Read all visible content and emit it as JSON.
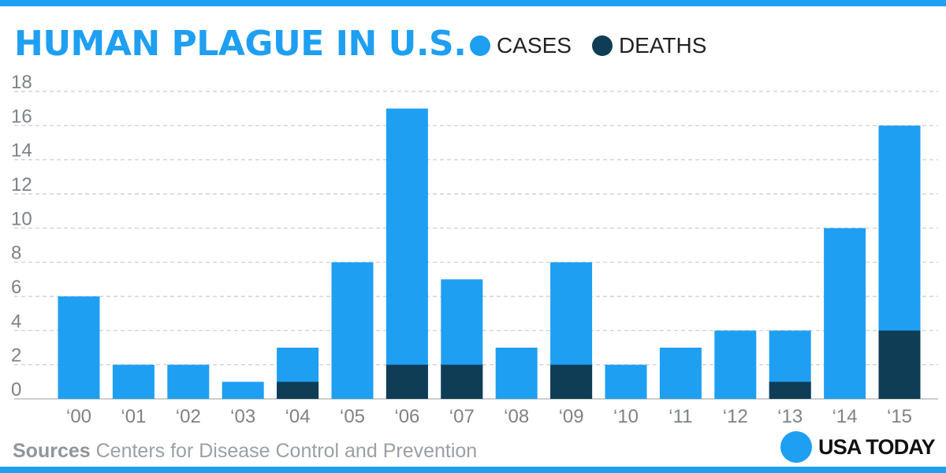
{
  "colors": {
    "cases": "#1e9ff2",
    "deaths": "#0f3d55",
    "accent": "#1e9ff2"
  },
  "header": {
    "title": "HUMAN PLAGUE IN U.S."
  },
  "legend": {
    "cases_label": "CASES",
    "deaths_label": "DEATHS"
  },
  "footer": {
    "source_label": "Sources",
    "source_text": "Centers for Disease Control and Prevention",
    "brand": "USA TODAY"
  },
  "chart_data": {
    "type": "bar",
    "title": "HUMAN PLAGUE IN U.S.",
    "xlabel": "",
    "ylabel": "",
    "ylim": [
      0,
      18
    ],
    "yticks": [
      0,
      2,
      4,
      6,
      8,
      10,
      12,
      14,
      16,
      18
    ],
    "grid": true,
    "legend_position": "top",
    "categories": [
      "‘00",
      "‘01",
      "‘02",
      "‘03",
      "‘04",
      "‘05",
      "‘06",
      "‘07",
      "‘08",
      "‘09",
      "‘10",
      "‘11",
      "‘12",
      "‘13",
      "‘14",
      "‘15"
    ],
    "series": [
      {
        "name": "CASES",
        "values": [
          6,
          2,
          2,
          1,
          3,
          8,
          17,
          7,
          3,
          8,
          2,
          3,
          4,
          4,
          10,
          16
        ]
      },
      {
        "name": "DEATHS",
        "values": [
          0,
          0,
          0,
          0,
          1,
          0,
          2,
          2,
          0,
          2,
          0,
          0,
          0,
          1,
          0,
          4
        ]
      }
    ]
  }
}
